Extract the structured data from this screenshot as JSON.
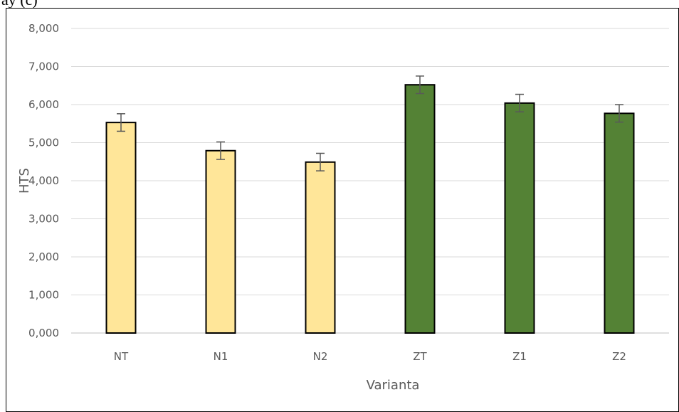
{
  "header": {
    "partial_text": "ay         (c)"
  },
  "chart_data": {
    "type": "bar",
    "title": "",
    "xlabel": "Varianta",
    "ylabel": "HTS",
    "ylim": [
      0,
      8
    ],
    "ytick_values": [
      0,
      1,
      2,
      3,
      4,
      5,
      6,
      7,
      8
    ],
    "ytick_labels": [
      "0,000",
      "1,000",
      "2,000",
      "3,000",
      "4,000",
      "5,000",
      "6,000",
      "7,000",
      "8,000"
    ],
    "categories": [
      "NT",
      "N1",
      "N2",
      "ZT",
      "Z1",
      "Z2"
    ],
    "values": [
      5.53,
      4.79,
      4.49,
      6.52,
      6.04,
      5.77
    ],
    "errors": [
      0.23,
      0.23,
      0.23,
      0.23,
      0.23,
      0.23
    ],
    "bar_colors": [
      "#FFE699",
      "#FFE699",
      "#FFE699",
      "#548235",
      "#548235",
      "#548235"
    ],
    "grid": true,
    "legend": "none"
  }
}
